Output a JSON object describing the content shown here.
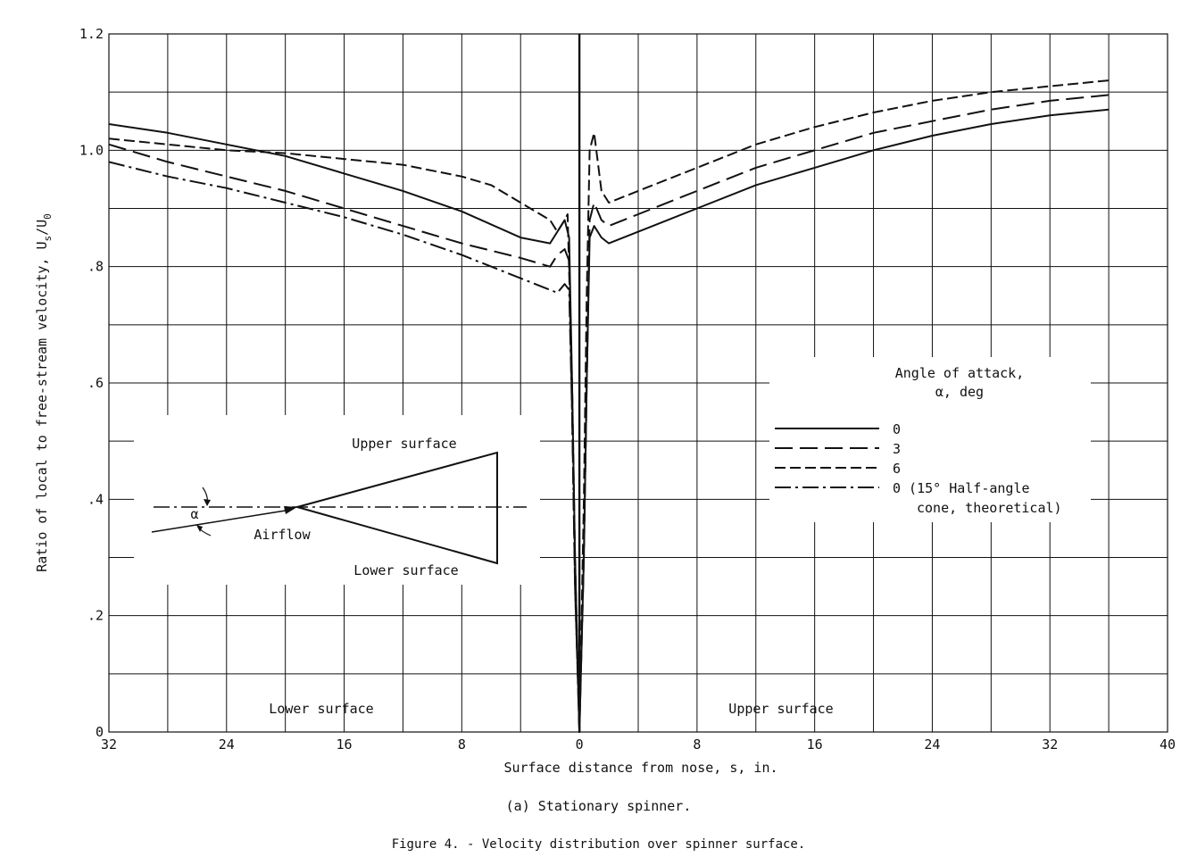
{
  "chart_data": {
    "type": "line",
    "xlabel": "Surface distance from nose, s, in.",
    "ylabel": "Ratio of local to free-stream velocity, U",
    "ylabel_sub": "s",
    "ylabel_slash": "/U",
    "ylabel_sub2": "0",
    "x_ticks": [
      "32",
      "24",
      "16",
      "8",
      "0",
      "8",
      "16",
      "24",
      "32",
      "40"
    ],
    "y_ticks": [
      "0",
      ".2",
      ".4",
      ".6",
      ".8",
      "1.0",
      "1.2"
    ],
    "xlim": [
      -32,
      40
    ],
    "ylim": [
      0,
      1.2
    ],
    "grid": true,
    "region_labels": {
      "left": "Lower surface",
      "right": "Upper surface"
    },
    "legend": {
      "title_line1": "Angle of attack,",
      "title_line2": "α, deg",
      "entries": [
        {
          "label": "0",
          "style": "solid"
        },
        {
          "label": "3",
          "style": "long-dash"
        },
        {
          "label": "6",
          "style": "short-dash"
        },
        {
          "label": "0 (15° Half-angle",
          "label2": "cone, theoretical)",
          "style": "dash-dot"
        }
      ]
    },
    "inset": {
      "upper": "Upper surface",
      "lower": "Lower surface",
      "airflow": "Airflow",
      "alpha": "α"
    },
    "series": [
      {
        "name": "0",
        "style": "solid",
        "x": [
          -32,
          -28,
          -24,
          -20,
          -16,
          -12,
          -8,
          -4,
          -2,
          -1.5,
          -1,
          -0.7,
          -0.5,
          -0.3,
          0,
          0.3,
          0.5,
          0.7,
          1,
          1.5,
          2,
          4,
          8,
          12,
          16,
          20,
          24,
          28,
          32,
          36
        ],
        "y": [
          1.045,
          1.03,
          1.01,
          0.99,
          0.96,
          0.93,
          0.895,
          0.85,
          0.84,
          0.86,
          0.88,
          0.85,
          0.6,
          0.3,
          0,
          0.3,
          0.6,
          0.85,
          0.87,
          0.85,
          0.84,
          0.86,
          0.9,
          0.94,
          0.97,
          1.0,
          1.025,
          1.045,
          1.06,
          1.07
        ]
      },
      {
        "name": "3",
        "style": "long-dash",
        "x": [
          -32,
          -28,
          -24,
          -20,
          -16,
          -12,
          -8,
          -4,
          -2,
          -1.5,
          -1,
          -0.7,
          -0.5,
          -0.3,
          0,
          0.3,
          0.5,
          0.7,
          1,
          1.5,
          2,
          4,
          8,
          12,
          16,
          20,
          24,
          28,
          32,
          36
        ],
        "y": [
          1.01,
          0.98,
          0.955,
          0.93,
          0.9,
          0.87,
          0.84,
          0.815,
          0.8,
          0.82,
          0.83,
          0.81,
          0.55,
          0.25,
          0,
          0.3,
          0.6,
          0.88,
          0.91,
          0.88,
          0.87,
          0.89,
          0.93,
          0.97,
          1.0,
          1.03,
          1.05,
          1.07,
          1.085,
          1.095
        ]
      },
      {
        "name": "6",
        "style": "short-dash",
        "x": [
          -32,
          -28,
          -24,
          -20,
          -16,
          -12,
          -8,
          -6,
          -4,
          -2,
          -1.5,
          -1,
          -0.8,
          -0.5,
          -0.3,
          0,
          0.3,
          0.5,
          0.7,
          1,
          1.5,
          2,
          4,
          8,
          12,
          16,
          20,
          24,
          28,
          32,
          36
        ],
        "y": [
          1.02,
          1.01,
          1.0,
          0.995,
          0.985,
          0.975,
          0.955,
          0.94,
          0.91,
          0.88,
          0.86,
          0.88,
          0.89,
          0.6,
          0.3,
          0,
          0.4,
          0.75,
          1.0,
          1.03,
          0.93,
          0.91,
          0.93,
          0.97,
          1.01,
          1.04,
          1.065,
          1.085,
          1.1,
          1.11,
          1.12
        ]
      },
      {
        "name": "0 (15° Half-angle cone, theoretical)",
        "style": "dash-dot",
        "x": [
          -32,
          -28,
          -24,
          -20,
          -16,
          -12,
          -8,
          -4,
          -2,
          -1.5,
          -1,
          -0.7,
          -0.5,
          -0.3,
          0
        ],
        "y": [
          0.98,
          0.955,
          0.935,
          0.91,
          0.885,
          0.855,
          0.82,
          0.78,
          0.76,
          0.755,
          0.77,
          0.76,
          0.55,
          0.25,
          0
        ]
      }
    ]
  },
  "captions": {
    "sub": "(a) Stationary spinner.",
    "figure": "Figure 4. - Velocity distribution over spinner surface."
  }
}
